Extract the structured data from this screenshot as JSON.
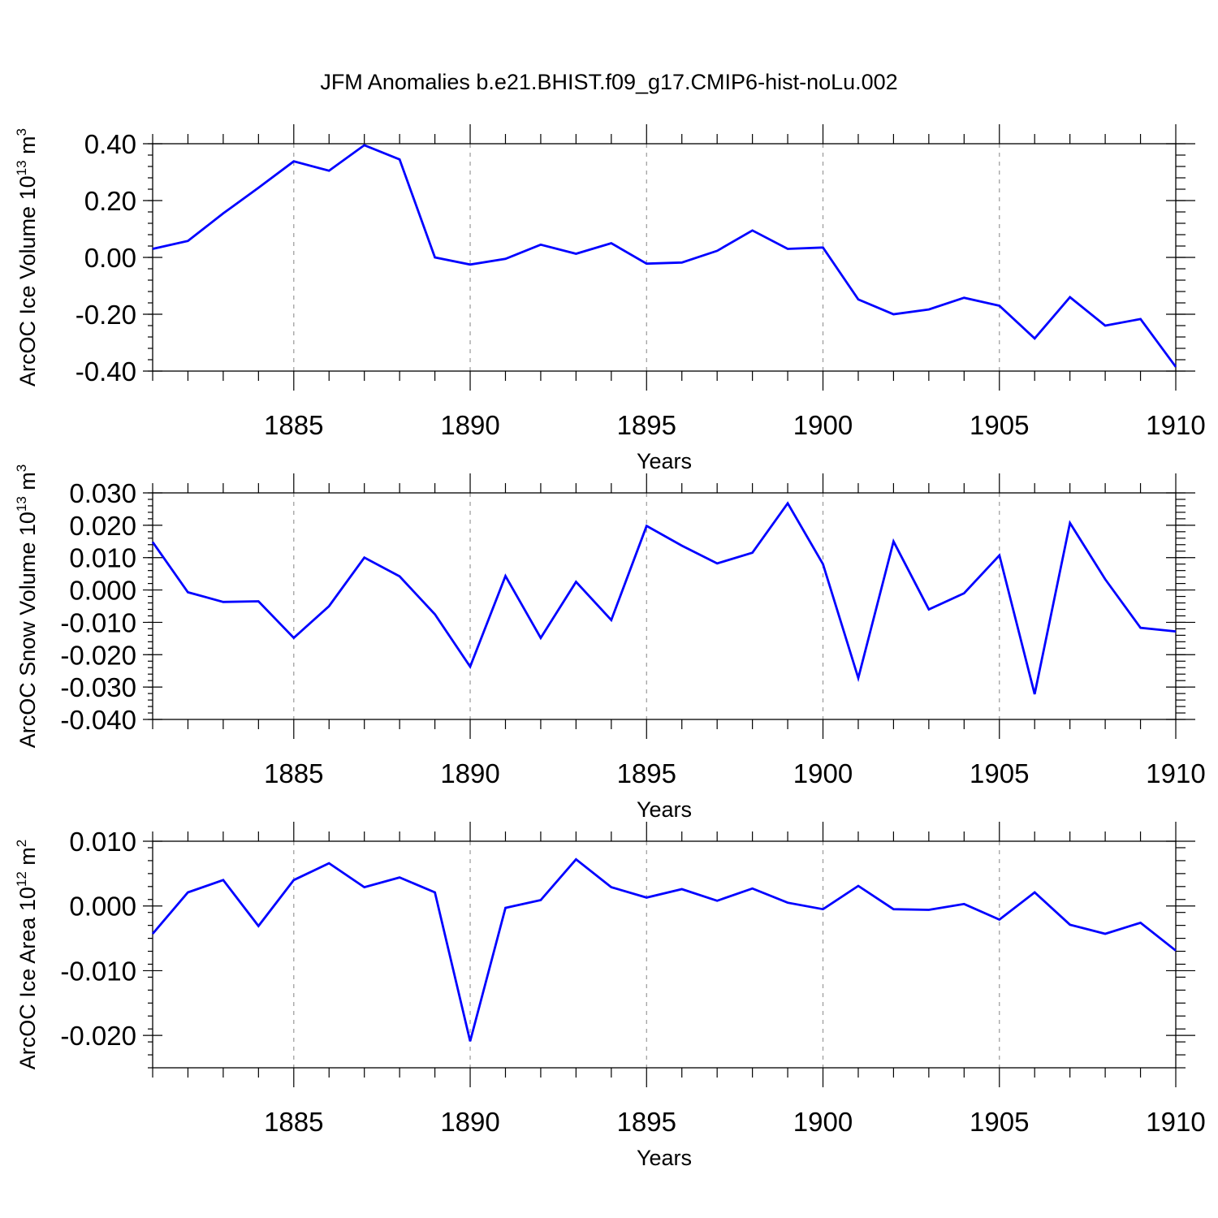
{
  "figure": {
    "title": "JFM Anomalies b.e21.BHIST.f09_g17.CMIP6-hist-noLu.002"
  },
  "colors": {
    "line": "#0000ff",
    "grid": "#999999",
    "axis": "#000000"
  },
  "chart_data": [
    {
      "type": "line",
      "xlabel": "Years",
      "ylabel_main": "ArcOC Ice Volume 10",
      "ylabel_sup_exp": "13",
      "ylabel_unit": " m",
      "ylabel_sup_unit": "3",
      "xlim": [
        1881,
        1910
      ],
      "ylim": [
        -0.4,
        0.4
      ],
      "xticks": [
        1885,
        1890,
        1895,
        1900,
        1905,
        1910
      ],
      "xtick_labels": [
        "1885",
        "1890",
        "1895",
        "1900",
        "1905",
        "1910"
      ],
      "yticks": [
        0.4,
        0.2,
        0.0,
        -0.2,
        -0.4
      ],
      "ytick_labels": [
        "0.40",
        "0.20",
        "0.00",
        "-0.20",
        "-0.40"
      ],
      "grid": "vertical dashed at major x ticks",
      "x": [
        1881,
        1882,
        1883,
        1884,
        1885,
        1886,
        1887,
        1888,
        1889,
        1890,
        1891,
        1892,
        1893,
        1894,
        1895,
        1896,
        1897,
        1898,
        1899,
        1900,
        1901,
        1902,
        1903,
        1904,
        1905,
        1906,
        1907,
        1908,
        1909,
        1910
      ],
      "y": [
        0.03,
        0.058,
        0.155,
        0.245,
        0.338,
        0.305,
        0.395,
        0.345,
        0.0,
        -0.025,
        -0.005,
        0.045,
        0.013,
        0.05,
        -0.022,
        -0.018,
        0.023,
        0.095,
        0.03,
        0.035,
        -0.148,
        -0.2,
        -0.183,
        -0.142,
        -0.17,
        -0.285,
        -0.14,
        -0.24,
        -0.217,
        -0.385
      ]
    },
    {
      "type": "line",
      "xlabel": "Years",
      "ylabel_main": "ArcOC Snow Volume 10",
      "ylabel_sup_exp": "13",
      "ylabel_unit": " m",
      "ylabel_sup_unit": "3",
      "xlim": [
        1881,
        1910
      ],
      "ylim": [
        -0.04,
        0.03
      ],
      "xticks": [
        1885,
        1890,
        1895,
        1900,
        1905,
        1910
      ],
      "xtick_labels": [
        "1885",
        "1890",
        "1895",
        "1900",
        "1905",
        "1910"
      ],
      "yticks": [
        0.03,
        0.02,
        0.01,
        0.0,
        -0.01,
        -0.02,
        -0.03,
        -0.04
      ],
      "ytick_labels": [
        "0.030",
        "0.020",
        "0.010",
        "0.000",
        "-0.010",
        "-0.020",
        "-0.030",
        "-0.040"
      ],
      "grid": "vertical dashed at major x ticks",
      "x": [
        1881,
        1882,
        1883,
        1884,
        1885,
        1886,
        1887,
        1888,
        1889,
        1890,
        1891,
        1892,
        1893,
        1894,
        1895,
        1896,
        1897,
        1898,
        1899,
        1900,
        1901,
        1902,
        1903,
        1904,
        1905,
        1906,
        1907,
        1908,
        1909,
        1910
      ],
      "y": [
        0.0148,
        -0.0007,
        -0.0037,
        -0.0035,
        -0.0148,
        -0.005,
        0.01,
        0.0042,
        -0.0075,
        -0.0237,
        0.0043,
        -0.0148,
        0.0025,
        -0.0093,
        0.0198,
        0.0137,
        0.0082,
        0.0115,
        0.0268,
        0.008,
        -0.0272,
        0.015,
        -0.006,
        -0.001,
        0.0107,
        -0.0322,
        0.0207,
        0.0033,
        -0.0117,
        -0.0128
      ]
    },
    {
      "type": "line",
      "xlabel": "Years",
      "ylabel_main": "ArcOC Ice Area 10",
      "ylabel_sup_exp": "12",
      "ylabel_unit": " m",
      "ylabel_sup_unit": "2",
      "xlim": [
        1881,
        1910
      ],
      "ylim": [
        -0.025,
        0.01
      ],
      "xticks": [
        1885,
        1890,
        1895,
        1900,
        1905,
        1910
      ],
      "xtick_labels": [
        "1885",
        "1890",
        "1895",
        "1900",
        "1905",
        "1910"
      ],
      "yticks": [
        0.01,
        0.0,
        -0.01,
        -0.02
      ],
      "ytick_labels": [
        "0.010",
        "0.000",
        "-0.010",
        "-0.020"
      ],
      "grid": "vertical dashed at major x ticks",
      "x": [
        1881,
        1882,
        1883,
        1884,
        1885,
        1886,
        1887,
        1888,
        1889,
        1890,
        1891,
        1892,
        1893,
        1894,
        1895,
        1896,
        1897,
        1898,
        1899,
        1900,
        1901,
        1902,
        1903,
        1904,
        1905,
        1906,
        1907,
        1908,
        1909,
        1910
      ],
      "y": [
        -0.0043,
        0.0021,
        0.004,
        -0.0031,
        0.004,
        0.0066,
        0.0029,
        0.0044,
        0.0021,
        -0.0209,
        -0.0003,
        0.0009,
        0.0072,
        0.0029,
        0.0013,
        0.0026,
        0.0008,
        0.0027,
        0.0005,
        -0.0005,
        0.0031,
        -0.0005,
        -0.0006,
        0.0003,
        -0.0021,
        0.0021,
        -0.0029,
        -0.0043,
        -0.0026,
        -0.0069
      ]
    }
  ]
}
